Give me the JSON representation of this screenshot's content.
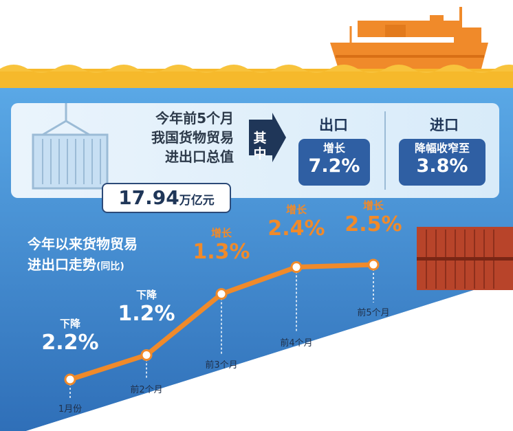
{
  "summary": {
    "title_lines": [
      "今年前5个月",
      "我国货物贸易",
      "进出口总值"
    ],
    "total_value": "17.94",
    "total_unit": "万亿元",
    "of_which": "其中",
    "export": {
      "heading": "出口",
      "label": "增长",
      "value": "7.2%"
    },
    "import": {
      "heading": "进口",
      "label": "降幅收窄至",
      "value": "3.8%"
    }
  },
  "trend_title": {
    "line1": "今年以来货物贸易",
    "line2": "进出口走势",
    "line2_suffix": "(同比)"
  },
  "colors": {
    "orange": "#f08a2a",
    "navy": "#1f3658",
    "blue": "#2f5fa3",
    "sky": "#5aa6e3",
    "gold": "#f6b92b"
  },
  "chart_data": {
    "type": "line",
    "categories": [
      "1月份",
      "前2个月",
      "前3个月",
      "前4个月",
      "前5个月"
    ],
    "values": [
      -2.2,
      -1.2,
      1.3,
      2.4,
      2.5
    ],
    "point_labels": [
      {
        "label": "下降",
        "value": "2.2%"
      },
      {
        "label": "下降",
        "value": "1.2%"
      },
      {
        "label": "增长",
        "value": "1.3%"
      },
      {
        "label": "增长",
        "value": "2.4%"
      },
      {
        "label": "增长",
        "value": "2.5%"
      }
    ],
    "title": "今年以来货物贸易进出口走势(同比)"
  }
}
